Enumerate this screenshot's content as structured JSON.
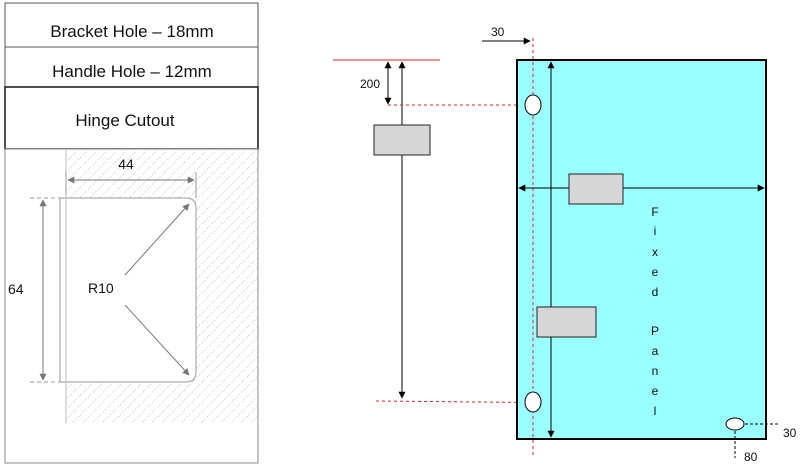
{
  "legend": {
    "bracket_hole": "Bracket Hole – 18mm",
    "handle_hole": "Handle Hole – 12mm",
    "hinge_cutout": "Hinge Cutout"
  },
  "cutout": {
    "width_label": "44",
    "height_label": "64",
    "radius_label": "R10"
  },
  "side_view": {
    "offset_label": "200"
  },
  "panel": {
    "top_offset_label": "30",
    "right_offset_label": "30",
    "bottom_offset_label": "80",
    "fixed_letters": [
      "F",
      "i",
      "x",
      "e",
      "d"
    ],
    "panel_letters": [
      "P",
      "a",
      "n",
      "e",
      "l"
    ]
  },
  "colors": {
    "panel_fill": "#99FFFF",
    "reference_red": "#e0202a",
    "block_fill": "#d6d6d6",
    "hatch": "#b8b8b8"
  }
}
